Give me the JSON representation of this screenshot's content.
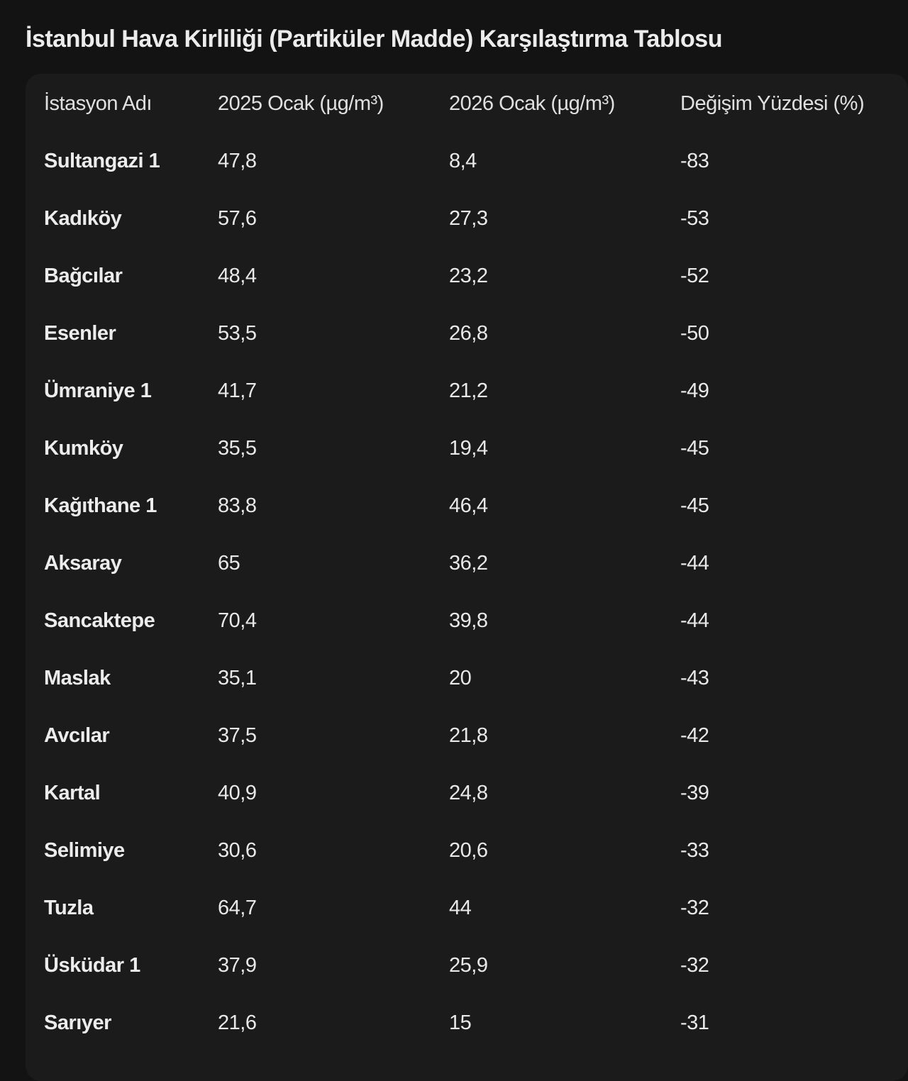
{
  "title": "İstanbul Hava Kirliliği (Partiküler Madde) Karşılaştırma Tablosu",
  "table": {
    "headers": [
      "İstasyon Adı",
      "2025 Ocak (µg/m³)",
      "2026 Ocak (µg/m³)",
      "Değişim Yüzdesi (%)"
    ],
    "rows": [
      [
        "Sultangazi 1",
        "47,8",
        "8,4",
        "-83"
      ],
      [
        "Kadıköy",
        "57,6",
        "27,3",
        "-53"
      ],
      [
        "Bağcılar",
        "48,4",
        "23,2",
        "-52"
      ],
      [
        "Esenler",
        "53,5",
        "26,8",
        "-50"
      ],
      [
        "Ümraniye 1",
        "41,7",
        "21,2",
        "-49"
      ],
      [
        "Kumköy",
        "35,5",
        "19,4",
        "-45"
      ],
      [
        "Kağıthane 1",
        "83,8",
        "46,4",
        "-45"
      ],
      [
        "Aksaray",
        "65",
        "36,2",
        "-44"
      ],
      [
        "Sancaktepe",
        "70,4",
        "39,8",
        "-44"
      ],
      [
        "Maslak",
        "35,1",
        "20",
        "-43"
      ],
      [
        "Avcılar",
        "37,5",
        "21,8",
        "-42"
      ],
      [
        "Kartal",
        "40,9",
        "24,8",
        "-39"
      ],
      [
        "Selimiye",
        "30,6",
        "20,6",
        "-33"
      ],
      [
        "Tuzla",
        "64,7",
        "44",
        "-32"
      ],
      [
        "Üsküdar 1",
        "37,9",
        "25,9",
        "-32"
      ],
      [
        "Sarıyer",
        "21,6",
        "15",
        "-31"
      ]
    ]
  }
}
